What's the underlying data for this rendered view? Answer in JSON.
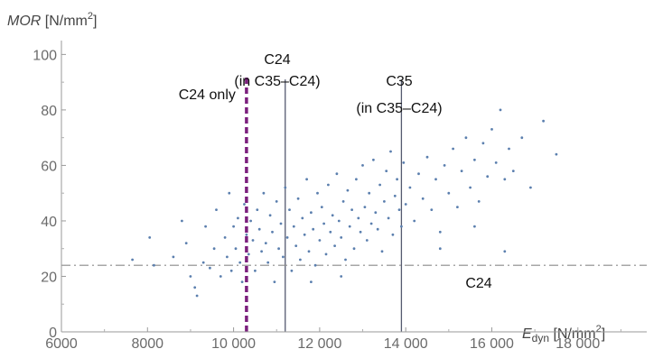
{
  "chart_data": {
    "type": "scatter",
    "title": "",
    "xlabel": {
      "main": "E",
      "sub": "dyn",
      "unit": " [N/mm",
      "sup": "2",
      "close": "]"
    },
    "ylabel": {
      "main": "MOR",
      "unit": " [N/mm",
      "sup": "2",
      "close": "]"
    },
    "xlim": [
      6000,
      19600
    ],
    "ylim": [
      0,
      105
    ],
    "x_ticks": [
      {
        "v": 6000,
        "label": "6000"
      },
      {
        "v": 8000,
        "label": "8000"
      },
      {
        "v": 10000,
        "label": "10 000"
      },
      {
        "v": 12000,
        "label": "12 000"
      },
      {
        "v": 14000,
        "label": "14 000"
      },
      {
        "v": 16000,
        "label": "16 000"
      },
      {
        "v": 18000,
        "label": "18 000"
      }
    ],
    "y_ticks": [
      {
        "v": 0,
        "label": "0"
      },
      {
        "v": 20,
        "label": "20"
      },
      {
        "v": 40,
        "label": "40"
      },
      {
        "v": 60,
        "label": "60"
      },
      {
        "v": 80,
        "label": "80"
      },
      {
        "v": 100,
        "label": "100"
      }
    ],
    "grid": false,
    "point_color": "#5b7fae",
    "thresholds": [
      {
        "axis": "x",
        "value": 10300,
        "style": "dashed",
        "color": "#7b1f7d",
        "label": "C24 only"
      },
      {
        "axis": "x",
        "value": 11200,
        "style": "solid",
        "color": "#555a70",
        "label_lines": [
          "C24",
          "(in C35–C24)"
        ]
      },
      {
        "axis": "x",
        "value": 13900,
        "style": "solid",
        "color": "#555a70",
        "label_lines": [
          "C35",
          "(in C35–C24)"
        ]
      },
      {
        "axis": "y",
        "value": 24,
        "style": "dashdot",
        "color": "#8a8a8a",
        "label": "C24"
      }
    ],
    "series": [
      {
        "points": [
          [
            7650,
            26
          ],
          [
            8050,
            34
          ],
          [
            8150,
            24
          ],
          [
            8600,
            27
          ],
          [
            8800,
            40
          ],
          [
            8900,
            32
          ],
          [
            9000,
            20
          ],
          [
            9100,
            16
          ],
          [
            9150,
            13
          ],
          [
            9300,
            25
          ],
          [
            9350,
            38
          ],
          [
            9450,
            23
          ],
          [
            9550,
            30
          ],
          [
            9600,
            44
          ],
          [
            9700,
            20
          ],
          [
            9800,
            34
          ],
          [
            9850,
            27
          ],
          [
            9900,
            50
          ],
          [
            9950,
            22
          ],
          [
            10000,
            38
          ],
          [
            10050,
            30
          ],
          [
            10100,
            41
          ],
          [
            10150,
            25
          ],
          [
            10200,
            18
          ],
          [
            10250,
            46
          ],
          [
            10300,
            35
          ],
          [
            10350,
            28
          ],
          [
            10400,
            40
          ],
          [
            10450,
            33
          ],
          [
            10500,
            22
          ],
          [
            10550,
            44
          ],
          [
            10600,
            37
          ],
          [
            10650,
            29
          ],
          [
            10700,
            50
          ],
          [
            10750,
            32
          ],
          [
            10800,
            25
          ],
          [
            10850,
            42
          ],
          [
            10900,
            36
          ],
          [
            10950,
            18
          ],
          [
            11000,
            47
          ],
          [
            11050,
            30
          ],
          [
            11100,
            39
          ],
          [
            11150,
            27
          ],
          [
            11200,
            52
          ],
          [
            11250,
            34
          ],
          [
            11300,
            44
          ],
          [
            11350,
            22
          ],
          [
            11400,
            38
          ],
          [
            11450,
            31
          ],
          [
            11500,
            48
          ],
          [
            11550,
            26
          ],
          [
            11600,
            41
          ],
          [
            11650,
            35
          ],
          [
            11700,
            55
          ],
          [
            11750,
            29
          ],
          [
            11800,
            43
          ],
          [
            11850,
            37
          ],
          [
            11900,
            24
          ],
          [
            11950,
            50
          ],
          [
            12000,
            33
          ],
          [
            12050,
            45
          ],
          [
            12100,
            39
          ],
          [
            12150,
            28
          ],
          [
            12200,
            53
          ],
          [
            12250,
            36
          ],
          [
            12300,
            42
          ],
          [
            12350,
            31
          ],
          [
            12400,
            57
          ],
          [
            12450,
            40
          ],
          [
            12500,
            34
          ],
          [
            12550,
            47
          ],
          [
            12600,
            26
          ],
          [
            12650,
            51
          ],
          [
            12700,
            38
          ],
          [
            12750,
            44
          ],
          [
            12800,
            30
          ],
          [
            12850,
            55
          ],
          [
            12900,
            41
          ],
          [
            12950,
            36
          ],
          [
            13000,
            60
          ],
          [
            13050,
            45
          ],
          [
            13100,
            33
          ],
          [
            13150,
            50
          ],
          [
            13200,
            39
          ],
          [
            13250,
            62
          ],
          [
            13300,
            43
          ],
          [
            13350,
            37
          ],
          [
            13400,
            53
          ],
          [
            13450,
            29
          ],
          [
            13500,
            47
          ],
          [
            13550,
            58
          ],
          [
            13600,
            41
          ],
          [
            13650,
            65
          ],
          [
            13700,
            35
          ],
          [
            13750,
            49
          ],
          [
            13800,
            55
          ],
          [
            13850,
            44
          ],
          [
            13900,
            38
          ],
          [
            13950,
            61
          ],
          [
            14000,
            46
          ],
          [
            14100,
            52
          ],
          [
            14200,
            40
          ],
          [
            14300,
            57
          ],
          [
            14400,
            48
          ],
          [
            14500,
            63
          ],
          [
            14600,
            44
          ],
          [
            14700,
            55
          ],
          [
            14800,
            36
          ],
          [
            14900,
            60
          ],
          [
            15000,
            50
          ],
          [
            15100,
            66
          ],
          [
            15200,
            45
          ],
          [
            15300,
            58
          ],
          [
            15400,
            70
          ],
          [
            15500,
            52
          ],
          [
            15600,
            62
          ],
          [
            15700,
            47
          ],
          [
            15800,
            68
          ],
          [
            15900,
            56
          ],
          [
            16000,
            73
          ],
          [
            16100,
            61
          ],
          [
            16200,
            80
          ],
          [
            16300,
            55
          ],
          [
            16400,
            66
          ],
          [
            16500,
            58
          ],
          [
            16700,
            70
          ],
          [
            16900,
            52
          ],
          [
            17200,
            76
          ],
          [
            17500,
            64
          ],
          [
            15600,
            38
          ],
          [
            14800,
            30
          ],
          [
            16300,
            29
          ],
          [
            12500,
            20
          ],
          [
            11800,
            18
          ]
        ]
      }
    ]
  }
}
